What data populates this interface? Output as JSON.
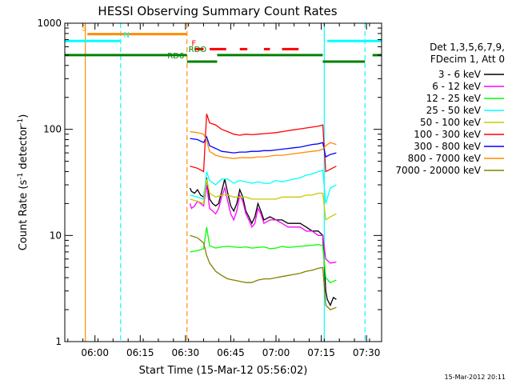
{
  "chart_data": {
    "type": "line",
    "title": "HESSI Observing Summary Count Rates",
    "xlabel": "Start Time (15-Mar-12 05:56:02)",
    "ylabel_main": "Count Rate (s",
    "ylabel_sup": "-1",
    "ylabel_mid": " detector",
    "ylabel_sup2": "-1",
    "ylabel_end": ")",
    "x_unit": "minutes after 05:56:02",
    "xlim": [
      -6,
      99
    ],
    "ylim": [
      1,
      1000
    ],
    "y_scale": "log",
    "x_ticks": [
      {
        "x": 4,
        "label": "06:00"
      },
      {
        "x": 19,
        "label": "06:15"
      },
      {
        "x": 34,
        "label": "06:30"
      },
      {
        "x": 49,
        "label": "06:45"
      },
      {
        "x": 64,
        "label": "07:00"
      },
      {
        "x": 79,
        "label": "07:15"
      },
      {
        "x": 94,
        "label": "07:30"
      }
    ],
    "y_ticks": [
      {
        "y": 1,
        "label": "1"
      },
      {
        "y": 10,
        "label": "10"
      },
      {
        "y": 100,
        "label": "100"
      },
      {
        "y": 1000,
        "label": "1000"
      }
    ],
    "legend_header": [
      "Det 1,3,5,6,7,9,",
      "FDecim 1, Att 0"
    ],
    "legend_position": "right",
    "timestamp": "15-Mar-2012 20:11",
    "flag_bars": [
      {
        "label": "S",
        "color": "#ff8c00",
        "value": 790,
        "segments": [
          [
            1.5,
            34.5
          ]
        ]
      },
      {
        "label": "N",
        "color": "#00ffff",
        "value": 680,
        "segments": [
          [
            -6,
            12.5
          ],
          [
            81,
            99
          ]
        ]
      },
      {
        "label": "F",
        "color": "#ff0000",
        "value": 570,
        "segments": [
          [
            37,
            40
          ],
          [
            42,
            47.5
          ],
          [
            52,
            54.5
          ],
          [
            60,
            62
          ],
          [
            66,
            71.5
          ]
        ]
      },
      {
        "label": "RDO",
        "color": "#008000",
        "value": 500,
        "segments": [
          [
            -6,
            34.5
          ],
          [
            44.5,
            79.5
          ],
          [
            96,
            99
          ]
        ]
      },
      {
        "label": "RD6",
        "color": "#008000",
        "value": 435,
        "segments": [
          [
            34.5,
            44.5
          ],
          [
            79.5,
            93.5
          ]
        ]
      }
    ],
    "vlines": [
      {
        "x": 0.8,
        "color": "#ff8c00",
        "dashed": false
      },
      {
        "x": 12.5,
        "color": "#00ffff",
        "dashed": true
      },
      {
        "x": 34.5,
        "color": "#ff8c00",
        "dashed": true
      },
      {
        "x": 80.0,
        "color": "#00ffff",
        "dashed": false
      },
      {
        "x": 93.5,
        "color": "#00ffff",
        "dashed": true
      }
    ],
    "series": [
      {
        "name": "3 - 6 keV",
        "color": "#000000",
        "x": [
          35.5,
          36,
          37,
          38,
          39,
          40,
          41,
          42,
          43,
          44,
          45,
          46,
          47,
          48,
          49,
          50,
          51,
          52,
          53,
          54,
          55,
          56,
          57,
          58,
          59,
          60,
          62,
          64,
          66,
          68,
          70,
          72,
          74,
          76,
          78,
          79.5,
          80.5,
          81,
          82,
          83,
          84
        ],
        "y": [
          28,
          26,
          25,
          27,
          24,
          23,
          35,
          22,
          20,
          19,
          20,
          26,
          34,
          25,
          19,
          17,
          20,
          27,
          23,
          17,
          15,
          13,
          15,
          20,
          17,
          14,
          15,
          14,
          14,
          13,
          13,
          13,
          12,
          11,
          11,
          10,
          3,
          2.5,
          2.2,
          2.6,
          2.5
        ]
      },
      {
        "name": "6 - 12 keV",
        "color": "#ff00ff",
        "x": [
          35.5,
          36,
          37,
          38,
          39,
          40,
          41,
          42,
          43,
          44,
          45,
          46,
          47,
          48,
          49,
          50,
          51,
          52,
          53,
          54,
          55,
          56,
          57,
          58,
          59,
          60,
          62,
          64,
          66,
          68,
          70,
          72,
          74,
          76,
          78,
          79.5,
          80.5,
          82,
          84
        ],
        "y": [
          20,
          18,
          19,
          21,
          20,
          19,
          30,
          18,
          17,
          16,
          18,
          23,
          28,
          21,
          16,
          14,
          17,
          24,
          21,
          16,
          14,
          12,
          13,
          18,
          16,
          13,
          14,
          14,
          13,
          12,
          12,
          12,
          11,
          11,
          10,
          10,
          6,
          5.5,
          5.6
        ]
      },
      {
        "name": "12 - 25 keV",
        "color": "#00ff00",
        "x": [
          35.5,
          38,
          40,
          41,
          42,
          44,
          46,
          48,
          50,
          52,
          54,
          56,
          58,
          60,
          62,
          64,
          66,
          68,
          70,
          72,
          74,
          76,
          78,
          79.5,
          80.5,
          82,
          84
        ],
        "y": [
          7,
          7.2,
          7.5,
          12,
          8,
          7.6,
          7.8,
          7.9,
          7.8,
          7.7,
          7.8,
          7.6,
          7.7,
          7.8,
          7.5,
          7.6,
          7.9,
          7.7,
          7.8,
          7.9,
          8,
          8.1,
          8.2,
          8,
          4,
          3.6,
          3.8
        ]
      },
      {
        "name": "25 - 50 keV",
        "color": "#00ffff",
        "x": [
          35.5,
          38,
          40,
          41,
          42,
          44,
          46,
          48,
          50,
          52,
          54,
          56,
          58,
          60,
          62,
          64,
          66,
          68,
          70,
          72,
          74,
          76,
          78,
          79.5,
          80.5,
          82,
          84
        ],
        "y": [
          24,
          23,
          22,
          40,
          33,
          30,
          34,
          34,
          31,
          33,
          32,
          31,
          32,
          31,
          31,
          33,
          32,
          33,
          34,
          35,
          37,
          38,
          40,
          41,
          20,
          28,
          30
        ]
      },
      {
        "name": "50 - 100 keV",
        "color": "#c8c800",
        "x": [
          35.5,
          38,
          40,
          41,
          42,
          44,
          46,
          48,
          50,
          52,
          54,
          56,
          58,
          60,
          62,
          64,
          66,
          68,
          70,
          72,
          74,
          76,
          78,
          79.5,
          80.5,
          82,
          84
        ],
        "y": [
          22,
          21,
          20,
          34,
          25,
          23,
          24,
          24,
          23,
          23,
          23,
          22,
          22,
          22,
          22,
          22,
          23,
          23,
          23,
          23,
          24,
          24,
          25,
          25,
          14,
          15,
          16
        ]
      },
      {
        "name": "100 - 300 keV",
        "color": "#ff0000",
        "x": [
          35.5,
          38,
          40,
          41,
          42,
          44,
          46,
          48,
          50,
          52,
          54,
          56,
          58,
          60,
          62,
          64,
          66,
          68,
          70,
          72,
          74,
          76,
          78,
          79.5,
          80.5,
          82,
          84
        ],
        "y": [
          45,
          43,
          40,
          140,
          115,
          110,
          100,
          95,
          90,
          88,
          90,
          89,
          90,
          91,
          92,
          93,
          95,
          97,
          99,
          101,
          103,
          105,
          107,
          110,
          40,
          42,
          45
        ]
      },
      {
        "name": "300 - 800 keV",
        "color": "#0000ff",
        "x": [
          35.5,
          38,
          40,
          41,
          42,
          44,
          46,
          48,
          50,
          52,
          54,
          56,
          58,
          60,
          62,
          64,
          66,
          68,
          70,
          72,
          74,
          76,
          78,
          79.5,
          80.5,
          82,
          84
        ],
        "y": [
          82,
          80,
          75,
          85,
          70,
          66,
          62,
          61,
          60,
          61,
          61,
          62,
          62,
          63,
          63,
          64,
          65,
          66,
          67,
          68,
          70,
          72,
          73,
          75,
          55,
          58,
          60
        ]
      },
      {
        "name": "800 - 7000 keV",
        "color": "#ff8c00",
        "x": [
          35.5,
          38,
          40,
          41,
          42,
          44,
          46,
          48,
          50,
          52,
          54,
          56,
          58,
          60,
          62,
          64,
          66,
          68,
          70,
          72,
          74,
          76,
          78,
          79.5,
          80.5,
          82,
          84
        ],
        "y": [
          95,
          93,
          90,
          78,
          62,
          57,
          55,
          54,
          53,
          54,
          54,
          54,
          55,
          55,
          56,
          57,
          57,
          58,
          59,
          60,
          61,
          62,
          63,
          65,
          70,
          75,
          72
        ]
      },
      {
        "name": "7000 - 20000 keV",
        "color": "#808000",
        "x": [
          35.5,
          38,
          40,
          41,
          42,
          44,
          46,
          48,
          50,
          52,
          54,
          56,
          58,
          60,
          62,
          64,
          66,
          68,
          70,
          72,
          74,
          76,
          78,
          79.5,
          80.5,
          82,
          84
        ],
        "y": [
          10,
          9.5,
          8.5,
          6.5,
          5.5,
          4.6,
          4.2,
          3.9,
          3.8,
          3.7,
          3.6,
          3.6,
          3.8,
          3.9,
          3.9,
          4,
          4.1,
          4.2,
          4.3,
          4.4,
          4.6,
          4.7,
          4.9,
          5,
          2.2,
          2,
          2.1
        ]
      }
    ]
  }
}
